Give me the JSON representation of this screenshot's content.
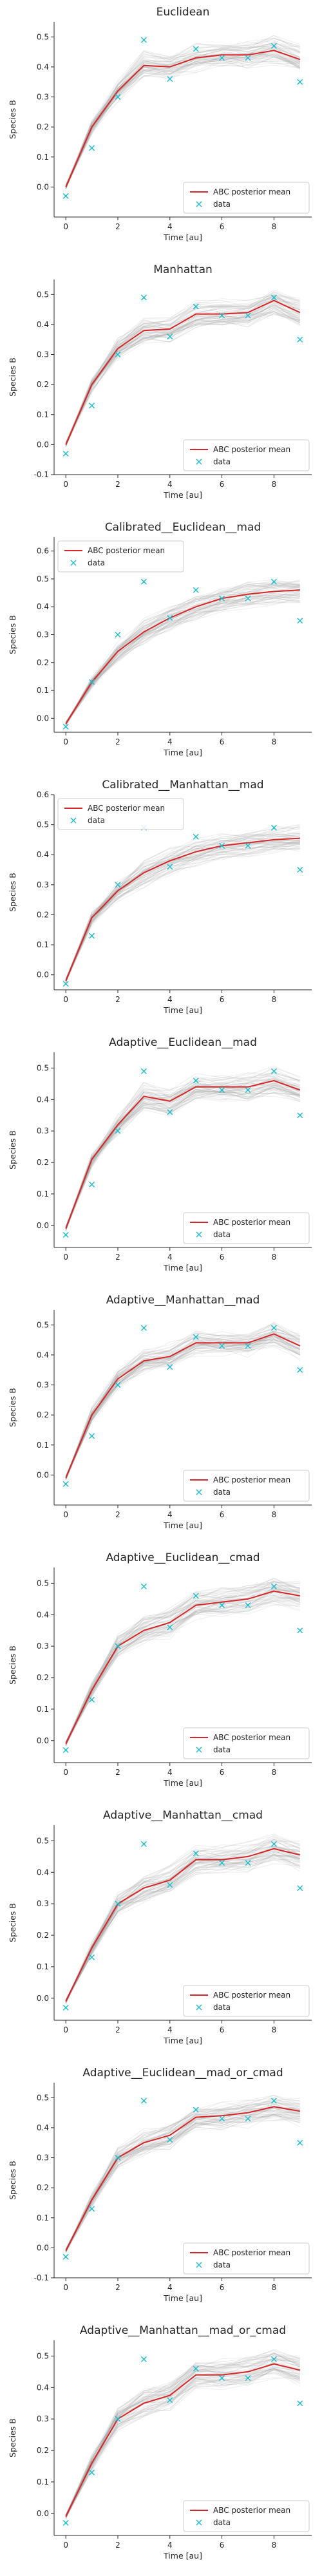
{
  "chart_data": [
    {
      "type": "line",
      "title": "Euclidean",
      "xlabel": "Time [au]",
      "ylabel": "Species B",
      "xlim": [
        -0.45,
        9.45
      ],
      "ylim": [
        -0.1,
        0.55
      ],
      "xticks": [
        0,
        2,
        4,
        6,
        8
      ],
      "yticks": [
        0.0,
        0.1,
        0.2,
        0.3,
        0.4,
        0.5
      ],
      "legend_position": "lower right",
      "grid": false,
      "series": [
        {
          "name": "ABC posterior mean",
          "color": "#d62728",
          "x": [
            0,
            1,
            2,
            3,
            4,
            5,
            6,
            7,
            8,
            9
          ],
          "values": [
            0.0,
            0.2,
            0.32,
            0.405,
            0.4,
            0.43,
            0.44,
            0.44,
            0.455,
            0.425
          ]
        },
        {
          "name": "data",
          "color": "#17becf",
          "marker": "x",
          "x": [
            0,
            1,
            2,
            3,
            4,
            5,
            6,
            7,
            8,
            9
          ],
          "values": [
            -0.03,
            0.13,
            0.3,
            0.49,
            0.36,
            0.46,
            0.43,
            0.43,
            0.47,
            0.35
          ]
        }
      ]
    },
    {
      "type": "line",
      "title": "Manhattan",
      "xlabel": "Time [au]",
      "ylabel": "Species B",
      "xlim": [
        -0.45,
        9.45
      ],
      "ylim": [
        -0.1,
        0.55
      ],
      "xticks": [
        0,
        2,
        4,
        6,
        8
      ],
      "yticks": [
        -0.1,
        0.0,
        0.1,
        0.2,
        0.3,
        0.4,
        0.5
      ],
      "legend_position": "lower right",
      "grid": false,
      "series": [
        {
          "name": "ABC posterior mean",
          "color": "#d62728",
          "x": [
            0,
            1,
            2,
            3,
            4,
            5,
            6,
            7,
            8,
            9
          ],
          "values": [
            0.0,
            0.2,
            0.32,
            0.38,
            0.385,
            0.435,
            0.435,
            0.44,
            0.48,
            0.44
          ]
        },
        {
          "name": "data",
          "color": "#17becf",
          "marker": "x",
          "x": [
            0,
            1,
            2,
            3,
            4,
            5,
            6,
            7,
            8,
            9
          ],
          "values": [
            -0.03,
            0.13,
            0.3,
            0.49,
            0.36,
            0.46,
            0.43,
            0.43,
            0.49,
            0.35
          ]
        }
      ]
    },
    {
      "type": "line",
      "title": "Calibrated__Euclidean__mad",
      "xlabel": "Time [au]",
      "ylabel": "Species B",
      "xlim": [
        -0.45,
        9.45
      ],
      "ylim": [
        -0.05,
        0.65
      ],
      "xticks": [
        0,
        2,
        4,
        6,
        8
      ],
      "yticks": [
        0.0,
        0.1,
        0.2,
        0.3,
        0.4,
        0.5,
        0.6
      ],
      "legend_position": "upper left",
      "grid": false,
      "series": [
        {
          "name": "ABC posterior mean",
          "color": "#d62728",
          "x": [
            0,
            1,
            2,
            3,
            4,
            5,
            6,
            7,
            8,
            9
          ],
          "values": [
            -0.02,
            0.13,
            0.24,
            0.31,
            0.36,
            0.4,
            0.43,
            0.445,
            0.455,
            0.46
          ]
        },
        {
          "name": "data",
          "color": "#17becf",
          "marker": "x",
          "x": [
            0,
            1,
            2,
            3,
            4,
            5,
            6,
            7,
            8,
            9
          ],
          "values": [
            -0.03,
            0.13,
            0.3,
            0.49,
            0.36,
            0.46,
            0.43,
            0.43,
            0.49,
            0.35
          ]
        }
      ]
    },
    {
      "type": "line",
      "title": "Calibrated__Manhattan__mad",
      "xlabel": "Time [au]",
      "ylabel": "Species B",
      "xlim": [
        -0.45,
        9.45
      ],
      "ylim": [
        -0.05,
        0.6
      ],
      "xticks": [
        0,
        2,
        4,
        6,
        8
      ],
      "yticks": [
        0.0,
        0.1,
        0.2,
        0.3,
        0.4,
        0.5,
        0.6
      ],
      "legend_position": "upper left",
      "grid": false,
      "series": [
        {
          "name": "ABC posterior mean",
          "color": "#d62728",
          "x": [
            0,
            1,
            2,
            3,
            4,
            5,
            6,
            7,
            8,
            9
          ],
          "values": [
            -0.02,
            0.19,
            0.28,
            0.34,
            0.38,
            0.41,
            0.43,
            0.44,
            0.45,
            0.455
          ]
        },
        {
          "name": "data",
          "color": "#17becf",
          "marker": "x",
          "x": [
            0,
            1,
            2,
            3,
            4,
            5,
            6,
            7,
            8,
            9
          ],
          "values": [
            -0.03,
            0.13,
            0.3,
            0.49,
            0.36,
            0.46,
            0.43,
            0.43,
            0.49,
            0.35
          ]
        }
      ]
    },
    {
      "type": "line",
      "title": "Adaptive__Euclidean__mad",
      "xlabel": "Time [au]",
      "ylabel": "Species B",
      "xlim": [
        -0.45,
        9.45
      ],
      "ylim": [
        -0.07,
        0.55
      ],
      "xticks": [
        0,
        2,
        4,
        6,
        8
      ],
      "yticks": [
        0.0,
        0.1,
        0.2,
        0.3,
        0.4,
        0.5
      ],
      "legend_position": "lower right",
      "grid": false,
      "series": [
        {
          "name": "ABC posterior mean",
          "color": "#d62728",
          "x": [
            0,
            1,
            2,
            3,
            4,
            5,
            6,
            7,
            8,
            9
          ],
          "values": [
            -0.01,
            0.21,
            0.32,
            0.41,
            0.395,
            0.44,
            0.44,
            0.44,
            0.46,
            0.43
          ]
        },
        {
          "name": "data",
          "color": "#17becf",
          "marker": "x",
          "x": [
            0,
            1,
            2,
            3,
            4,
            5,
            6,
            7,
            8,
            9
          ],
          "values": [
            -0.03,
            0.13,
            0.3,
            0.49,
            0.36,
            0.46,
            0.43,
            0.43,
            0.49,
            0.35
          ]
        }
      ]
    },
    {
      "type": "line",
      "title": "Adaptive__Manhattan__mad",
      "xlabel": "Time [au]",
      "ylabel": "Species B",
      "xlim": [
        -0.45,
        9.45
      ],
      "ylim": [
        -0.1,
        0.55
      ],
      "xticks": [
        0,
        2,
        4,
        6,
        8
      ],
      "yticks": [
        0.0,
        0.1,
        0.2,
        0.3,
        0.4,
        0.5
      ],
      "legend_position": "lower right",
      "grid": false,
      "series": [
        {
          "name": "ABC posterior mean",
          "color": "#d62728",
          "x": [
            0,
            1,
            2,
            3,
            4,
            5,
            6,
            7,
            8,
            9
          ],
          "values": [
            -0.01,
            0.2,
            0.32,
            0.38,
            0.395,
            0.44,
            0.44,
            0.44,
            0.47,
            0.43
          ]
        },
        {
          "name": "data",
          "color": "#17becf",
          "marker": "x",
          "x": [
            0,
            1,
            2,
            3,
            4,
            5,
            6,
            7,
            8,
            9
          ],
          "values": [
            -0.03,
            0.13,
            0.3,
            0.49,
            0.36,
            0.46,
            0.43,
            0.43,
            0.49,
            0.35
          ]
        }
      ]
    },
    {
      "type": "line",
      "title": "Adaptive__Euclidean__cmad",
      "xlabel": "Time [au]",
      "ylabel": "Species B",
      "xlim": [
        -0.45,
        9.45
      ],
      "ylim": [
        -0.07,
        0.55
      ],
      "xticks": [
        0,
        2,
        4,
        6,
        8
      ],
      "yticks": [
        0.0,
        0.1,
        0.2,
        0.3,
        0.4,
        0.5
      ],
      "legend_position": "lower right",
      "grid": false,
      "series": [
        {
          "name": "ABC posterior mean",
          "color": "#d62728",
          "x": [
            0,
            1,
            2,
            3,
            4,
            5,
            6,
            7,
            8,
            9
          ],
          "values": [
            -0.01,
            0.16,
            0.3,
            0.35,
            0.375,
            0.43,
            0.44,
            0.45,
            0.475,
            0.46
          ]
        },
        {
          "name": "data",
          "color": "#17becf",
          "marker": "x",
          "x": [
            0,
            1,
            2,
            3,
            4,
            5,
            6,
            7,
            8,
            9
          ],
          "values": [
            -0.03,
            0.13,
            0.3,
            0.49,
            0.36,
            0.46,
            0.43,
            0.43,
            0.49,
            0.35
          ]
        }
      ]
    },
    {
      "type": "line",
      "title": "Adaptive__Manhattan__cmad",
      "xlabel": "Time [au]",
      "ylabel": "Species B",
      "xlim": [
        -0.45,
        9.45
      ],
      "ylim": [
        -0.07,
        0.55
      ],
      "xticks": [
        0,
        2,
        4,
        6,
        8
      ],
      "yticks": [
        0.0,
        0.1,
        0.2,
        0.3,
        0.4,
        0.5
      ],
      "legend_position": "lower right",
      "grid": false,
      "series": [
        {
          "name": "ABC posterior mean",
          "color": "#d62728",
          "x": [
            0,
            1,
            2,
            3,
            4,
            5,
            6,
            7,
            8,
            9
          ],
          "values": [
            -0.01,
            0.16,
            0.3,
            0.35,
            0.375,
            0.44,
            0.44,
            0.45,
            0.475,
            0.455
          ]
        },
        {
          "name": "data",
          "color": "#17becf",
          "marker": "x",
          "x": [
            0,
            1,
            2,
            3,
            4,
            5,
            6,
            7,
            8,
            9
          ],
          "values": [
            -0.03,
            0.13,
            0.3,
            0.49,
            0.36,
            0.46,
            0.43,
            0.43,
            0.49,
            0.35
          ]
        }
      ]
    },
    {
      "type": "line",
      "title": "Adaptive__Euclidean__mad_or_cmad",
      "xlabel": "Time [au]",
      "ylabel": "Species B",
      "xlim": [
        -0.45,
        9.45
      ],
      "ylim": [
        -0.1,
        0.55
      ],
      "xticks": [
        0,
        2,
        4,
        6,
        8
      ],
      "yticks": [
        -0.1,
        0.0,
        0.1,
        0.2,
        0.3,
        0.4,
        0.5
      ],
      "legend_position": "lower right",
      "grid": false,
      "series": [
        {
          "name": "ABC posterior mean",
          "color": "#d62728",
          "x": [
            0,
            1,
            2,
            3,
            4,
            5,
            6,
            7,
            8,
            9
          ],
          "values": [
            -0.01,
            0.16,
            0.3,
            0.35,
            0.375,
            0.435,
            0.44,
            0.45,
            0.47,
            0.455
          ]
        },
        {
          "name": "data",
          "color": "#17becf",
          "marker": "x",
          "x": [
            0,
            1,
            2,
            3,
            4,
            5,
            6,
            7,
            8,
            9
          ],
          "values": [
            -0.03,
            0.13,
            0.3,
            0.49,
            0.36,
            0.46,
            0.43,
            0.43,
            0.49,
            0.35
          ]
        }
      ]
    },
    {
      "type": "line",
      "title": "Adaptive__Manhattan__mad_or_cmad",
      "xlabel": "Time [au]",
      "ylabel": "Species B",
      "xlim": [
        -0.45,
        9.45
      ],
      "ylim": [
        -0.07,
        0.55
      ],
      "xticks": [
        0,
        2,
        4,
        6,
        8
      ],
      "yticks": [
        0.0,
        0.1,
        0.2,
        0.3,
        0.4,
        0.5
      ],
      "legend_position": "lower right",
      "grid": false,
      "series": [
        {
          "name": "ABC posterior mean",
          "color": "#d62728",
          "x": [
            0,
            1,
            2,
            3,
            4,
            5,
            6,
            7,
            8,
            9
          ],
          "values": [
            -0.01,
            0.16,
            0.3,
            0.35,
            0.375,
            0.44,
            0.44,
            0.45,
            0.475,
            0.455
          ]
        },
        {
          "name": "data",
          "color": "#17becf",
          "marker": "x",
          "x": [
            0,
            1,
            2,
            3,
            4,
            5,
            6,
            7,
            8,
            9
          ],
          "values": [
            -0.03,
            0.13,
            0.3,
            0.49,
            0.36,
            0.46,
            0.43,
            0.43,
            0.49,
            0.35
          ]
        }
      ]
    }
  ]
}
